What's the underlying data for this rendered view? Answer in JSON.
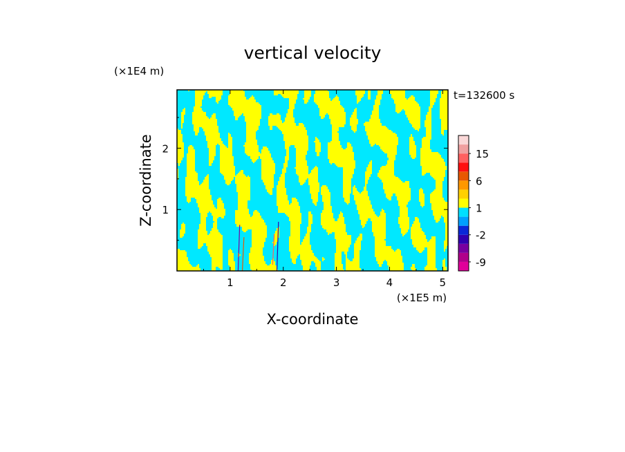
{
  "chart_data": {
    "type": "heatmap",
    "title": "vertical velocity",
    "xlabel": "X-coordinate",
    "ylabel": "Z-coordinate",
    "x_unit": "(×1E5 m)",
    "y_unit": "(×1E4 m)",
    "time_label": "t=132600  s",
    "xlim": [
      0,
      5.1
    ],
    "ylim": [
      0,
      2.95
    ],
    "x_ticks": [
      1,
      2,
      3,
      4,
      5
    ],
    "y_ticks": [
      1,
      2
    ],
    "x_tick_labels": [
      "1",
      "2",
      "3",
      "4",
      "5"
    ],
    "y_tick_labels": [
      "1",
      "2"
    ],
    "field_note": "",
    "colorbar": {
      "levels": [
        -12,
        -9,
        -6,
        -4,
        -2,
        -1,
        0,
        1,
        2,
        4,
        6,
        9,
        12,
        15,
        18,
        24
      ],
      "colors": [
        "#e0009a",
        "#b0008a",
        "#7800a0",
        "#3000b0",
        "#0a28d8",
        "#00a0ff",
        "#00e0ff",
        "#ffff00",
        "#ffd000",
        "#ff9800",
        "#e85800",
        "#ff1010",
        "#ff6060",
        "#f0a0a0",
        "#fad8d8",
        "#fff0ee"
      ],
      "labels": [
        "-9",
        "-2",
        "1",
        "6",
        "15"
      ],
      "label_values": [
        -9,
        -2,
        1,
        6,
        15
      ]
    },
    "dominant_colors": {
      "positive": "#ffff00",
      "negative": "#00e8ff"
    }
  }
}
